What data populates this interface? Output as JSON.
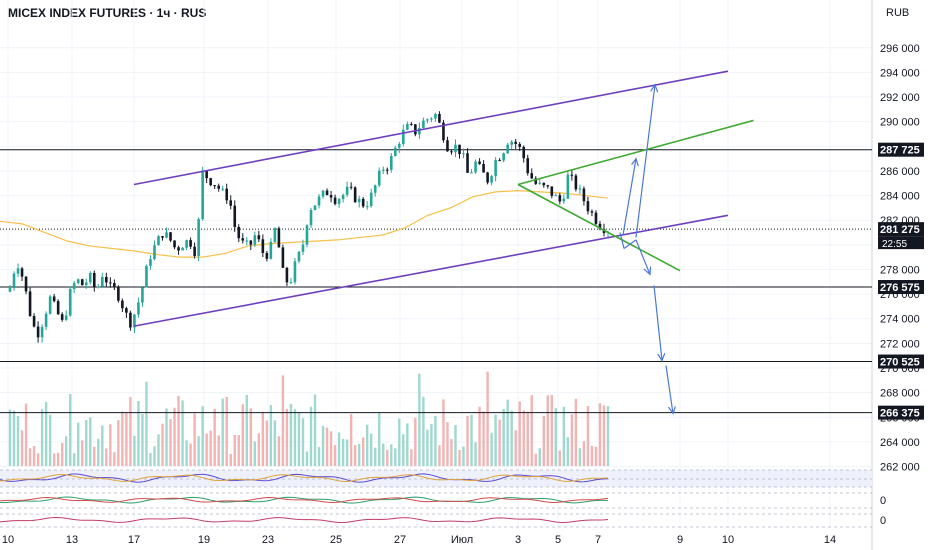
{
  "header": {
    "title": "MICEX INDEX FUTURES · 1ч · RUS",
    "currency": "RUB"
  },
  "chart_data": {
    "type": "candlestick",
    "symbol": "MICEX INDEX FUTURES",
    "interval": "1ч",
    "exchange": "RUS",
    "currency": "RUB",
    "ylim": [
      260500,
      297200
    ],
    "y_ticks": [
      262000,
      264000,
      266000,
      268000,
      270000,
      272000,
      274000,
      276000,
      278000,
      280000,
      282000,
      284000,
      286000,
      288000,
      290000,
      292000,
      294000,
      296000
    ],
    "y_tick_labels": [
      "262 000",
      "264 000",
      "266 000",
      "268 000",
      "270 000",
      "272 000",
      "274 000",
      "276 000",
      "278 000",
      "280 000",
      "282 000",
      "284 000",
      "286 000",
      "288 000",
      "290 000",
      "292 000",
      "294 000",
      "296 000"
    ],
    "x_tick_labels": [
      "10",
      "13",
      "17",
      "19",
      "23",
      "25",
      "27",
      "Июл",
      "3",
      "5",
      "7",
      "9",
      "10",
      "14"
    ],
    "levels": [
      {
        "value": 287725,
        "label": "287 725",
        "style": "solid",
        "color": "#131722"
      },
      {
        "value": 276575,
        "label": "276 575",
        "style": "solid",
        "color": "#131722"
      },
      {
        "value": 270525,
        "label": "270 525",
        "style": "solid",
        "color": "#131722"
      },
      {
        "value": 266375,
        "label": "266 375",
        "style": "solid",
        "color": "#131722"
      },
      {
        "value": 281275,
        "label": "281 275",
        "style": "dotted",
        "color": "#131722"
      }
    ],
    "last_price": {
      "value": 281275,
      "label": "281 275",
      "countdown": "22:55"
    },
    "price_path": [
      276500,
      278800,
      277200,
      274500,
      272600,
      273900,
      275700,
      274600,
      273500,
      276000,
      277200,
      276700,
      277400,
      276200,
      277800,
      276500,
      276300,
      275000,
      273600,
      274700,
      276700,
      279000,
      280100,
      281000,
      280500,
      279600,
      280100,
      280400,
      279300,
      285900,
      285300,
      284900,
      284200,
      283800,
      281000,
      280100,
      279800,
      280900,
      279400,
      279200,
      281500,
      277800,
      276700,
      278500,
      279800,
      282900,
      283400,
      284000,
      284400,
      283700,
      284000,
      284500,
      283800,
      283300,
      283500,
      284800,
      286200,
      286500,
      287800,
      289000,
      289600,
      289200,
      289900,
      290300,
      290600,
      289300,
      287800,
      288000,
      287500,
      285500,
      286700,
      285900,
      285200,
      286800,
      287400,
      288600,
      288300,
      287600,
      285900,
      285000,
      284700,
      284500,
      283900,
      283400,
      285600,
      284900,
      284000,
      283000,
      282200,
      281500,
      281275
    ],
    "moving_average": {
      "color": "#f7c04a",
      "values": [
        281900,
        281700,
        281000,
        280300,
        279900,
        279700,
        279500,
        279200,
        279000,
        279000,
        279300,
        279900,
        280100,
        280200,
        280300,
        280400,
        280600,
        280800,
        281400,
        282400,
        283000,
        283900,
        284300,
        284400,
        284300,
        284200,
        284000,
        283800
      ]
    },
    "trend_lines": [
      {
        "name": "channel-upper",
        "color": "#6f3fbf",
        "from": [
          "Jun 17",
          284900
        ],
        "to": [
          "Jul 10",
          294100
        ]
      },
      {
        "name": "channel-lower",
        "color": "#6f3fbf",
        "from": [
          "Jun 17",
          273400
        ],
        "to": [
          "Jul 10",
          282400
        ]
      },
      {
        "name": "flag-upper",
        "color": "#3faa33",
        "from": [
          "Jul 3",
          284900
        ],
        "to": [
          "Jul 11",
          290100
        ]
      },
      {
        "name": "flag-lower",
        "color": "#3faa33",
        "from": [
          "Jul 3",
          284900
        ],
        "to": [
          "Jul 9",
          277900
        ]
      }
    ],
    "projection_arrows": {
      "color": "#4a78d9",
      "path_a": [
        280800,
        287000
      ],
      "path_a_alt": [
        279800,
        293000
      ],
      "path_b": [
        279700,
        277600,
        276700,
        270600,
        266300
      ]
    },
    "volume": {
      "up_color": "#9fd8cf",
      "down_color": "#f2b3b3"
    },
    "oscillators": [
      {
        "name": "osc-1",
        "label": ""
      },
      {
        "name": "osc-2",
        "label": "0"
      },
      {
        "name": "osc-3",
        "label": "0"
      }
    ]
  },
  "colors": {
    "up": "#26a69a",
    "down": "#131722",
    "channel": "#6f3fbf",
    "flag": "#3faa33",
    "arrow": "#4a78d9",
    "ma": "#f7c04a",
    "grid": "#f0f3fa"
  }
}
